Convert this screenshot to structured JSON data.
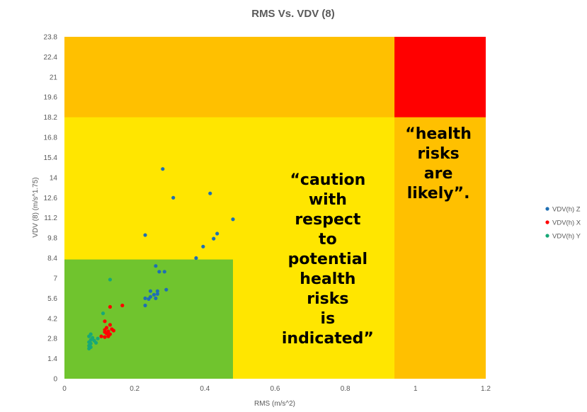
{
  "chart_data": {
    "type": "scatter",
    "title": "RMS Vs. VDV (8)",
    "xlabel": "RMS (m/s^2)",
    "ylabel": "VDV (8) (m/s^1.75)",
    "xlim": [
      0,
      1.2
    ],
    "ylim": [
      0,
      23.8
    ],
    "xticks": [
      0,
      0.2,
      0.4,
      0.6,
      0.8,
      1,
      1.2
    ],
    "xtick_labels": [
      "0",
      "0.2",
      "0.4",
      "0.6",
      "0.8",
      "1",
      "1.2"
    ],
    "yticks": [
      0,
      1.4,
      2.8,
      4.2,
      5.6,
      7,
      8.4,
      9.8,
      11.2,
      12.6,
      14,
      15.4,
      16.8,
      18.2,
      19.6,
      21,
      22.4,
      23.8
    ],
    "ytick_labels": [
      "0",
      "1.4",
      "2.8",
      "4.2",
      "5.6",
      "7",
      "8.4",
      "9.8",
      "11.2",
      "12.6",
      "14",
      "15.4",
      "16.8",
      "18.2",
      "19.6",
      "21",
      "22.4",
      "23.8"
    ],
    "legend_position": "right",
    "zones": [
      {
        "name": "orange-zone",
        "x0": 0,
        "x1": 1.2,
        "y0": 0,
        "y1": 23.8,
        "color": "#FFC000"
      },
      {
        "name": "yellow-zone",
        "x0": 0,
        "x1": 0.94,
        "y0": 0,
        "y1": 18.2,
        "color": "#FFE600"
      },
      {
        "name": "green-zone",
        "x0": 0,
        "x1": 0.48,
        "y0": 0,
        "y1": 8.3,
        "color": "#70C42E"
      },
      {
        "name": "red-zone",
        "x0": 0.94,
        "x1": 1.2,
        "y0": 18.2,
        "y1": 23.8,
        "color": "#FF0000"
      }
    ],
    "annotations": [
      {
        "name": "caution-annotation",
        "lines": [
          "“caution",
          "with",
          "respect",
          "to",
          "potential",
          "health",
          "risks",
          "is",
          "indicated”"
        ],
        "x": 0.75,
        "y_top": 13.5
      },
      {
        "name": "health-risks-annotation",
        "lines": [
          "“health",
          "risks",
          "are",
          "likely”."
        ],
        "x": 1.065,
        "y_top": 16.7
      }
    ],
    "series": [
      {
        "name": "VDV(h) Z",
        "color": "#1F6FB4",
        "points": [
          [
            0.28,
            14.6
          ],
          [
            0.31,
            12.6
          ],
          [
            0.415,
            12.9
          ],
          [
            0.48,
            11.1
          ],
          [
            0.435,
            10.1
          ],
          [
            0.425,
            9.75
          ],
          [
            0.395,
            9.2
          ],
          [
            0.23,
            10.0
          ],
          [
            0.375,
            8.4
          ],
          [
            0.26,
            7.85
          ],
          [
            0.27,
            7.45
          ],
          [
            0.285,
            7.45
          ],
          [
            0.29,
            6.2
          ],
          [
            0.245,
            6.1
          ],
          [
            0.265,
            6.1
          ],
          [
            0.265,
            5.9
          ],
          [
            0.255,
            5.85
          ],
          [
            0.245,
            5.7
          ],
          [
            0.23,
            5.6
          ],
          [
            0.26,
            5.6
          ],
          [
            0.24,
            5.55
          ],
          [
            0.23,
            5.1
          ]
        ]
      },
      {
        "name": "VDV(h) X",
        "color": "#FF0000",
        "points": [
          [
            0.165,
            5.1
          ],
          [
            0.13,
            5.0
          ],
          [
            0.115,
            4.0
          ],
          [
            0.13,
            3.75
          ],
          [
            0.12,
            3.55
          ],
          [
            0.135,
            3.45
          ],
          [
            0.115,
            3.4
          ],
          [
            0.14,
            3.35
          ],
          [
            0.125,
            3.3
          ],
          [
            0.115,
            3.25
          ],
          [
            0.12,
            3.15
          ],
          [
            0.13,
            3.1
          ],
          [
            0.105,
            2.95
          ],
          [
            0.115,
            2.9
          ],
          [
            0.125,
            2.95
          ]
        ]
      },
      {
        "name": "VDV(h) Y",
        "color": "#18A877",
        "points": [
          [
            0.13,
            6.9
          ],
          [
            0.11,
            4.55
          ],
          [
            0.075,
            3.1
          ],
          [
            0.07,
            2.95
          ],
          [
            0.08,
            2.85
          ],
          [
            0.095,
            2.8
          ],
          [
            0.075,
            2.7
          ],
          [
            0.085,
            2.65
          ],
          [
            0.07,
            2.55
          ],
          [
            0.09,
            2.5
          ],
          [
            0.075,
            2.45
          ],
          [
            0.07,
            2.3
          ],
          [
            0.075,
            2.2
          ],
          [
            0.07,
            2.1
          ]
        ]
      }
    ]
  }
}
